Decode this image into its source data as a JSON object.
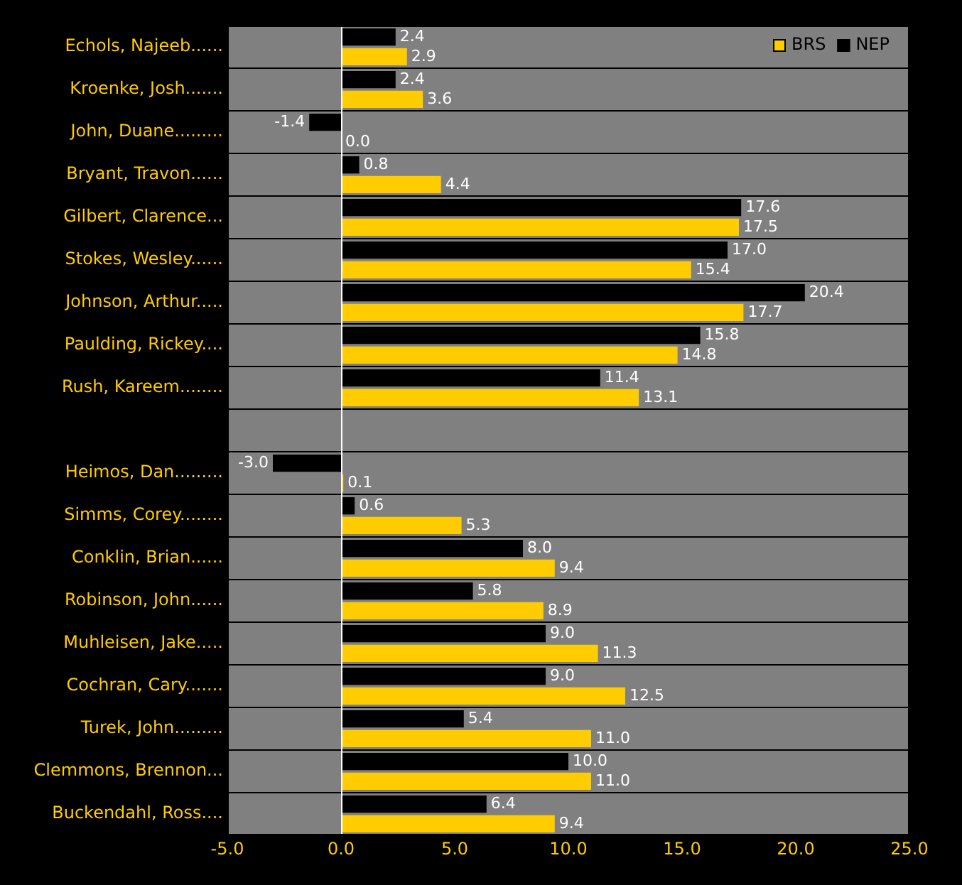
{
  "chart_data": {
    "type": "bar",
    "orientation": "horizontal",
    "categories": [
      "Echols, Najeeb......",
      "Kroenke, Josh.......",
      "John, Duane.........",
      "Bryant, Travon......",
      "Gilbert, Clarence...",
      "Stokes, Wesley......",
      "Johnson, Arthur.....",
      "Paulding, Rickey....",
      "Rush, Kareem........",
      null,
      "Heimos, Dan.........",
      "Simms, Corey........",
      "Conklin, Brian......",
      "Robinson, John......",
      "Muhleisen, Jake.....",
      "Cochran, Cary.......",
      "Turek, John.........",
      "Clemmons, Brennon...",
      "Buckendahl, Ross...."
    ],
    "series": [
      {
        "name": "BRS",
        "color": "#ffcc00",
        "values": [
          2.9,
          3.6,
          0.0,
          4.4,
          17.5,
          15.4,
          17.7,
          14.8,
          13.1,
          null,
          0.1,
          5.3,
          9.4,
          8.9,
          11.3,
          12.5,
          11.0,
          11.0,
          9.4
        ],
        "value_labels": [
          "2.9",
          "3.6",
          "0.0",
          "4.4",
          "17.5",
          "15.4",
          "17.7",
          "14.8",
          "13.1",
          null,
          "0.1",
          "5.3",
          "9.4",
          "8.9",
          "11.3",
          "12.5",
          "11.0",
          "11.0",
          "9.4"
        ]
      },
      {
        "name": "NEP",
        "color": "#000000",
        "values": [
          2.4,
          2.4,
          -1.4,
          0.8,
          17.6,
          17.0,
          20.4,
          15.8,
          11.4,
          null,
          -3.0,
          0.6,
          8.0,
          5.8,
          9.0,
          9.0,
          5.4,
          10.0,
          6.4
        ],
        "value_labels": [
          "2.4",
          "2.4",
          "-1.4",
          "0.8",
          "17.6",
          "17.0",
          "20.4",
          "15.8",
          "11.4",
          null,
          "-3.0",
          "0.6",
          "8.0",
          "5.8",
          "9.0",
          "9.0",
          "5.4",
          "10.0",
          "6.4"
        ]
      }
    ],
    "xlim": [
      -5,
      25
    ],
    "xticks": [
      {
        "value": -5,
        "label": "-5.0"
      },
      {
        "value": 0,
        "label": "0.0"
      },
      {
        "value": 5,
        "label": "5.0"
      },
      {
        "value": 10,
        "label": "10.0"
      },
      {
        "value": 15,
        "label": "15.0"
      },
      {
        "value": 20,
        "label": "20.0"
      },
      {
        "value": 25,
        "label": "25.0"
      }
    ],
    "grid": "y",
    "legend": "top right"
  }
}
